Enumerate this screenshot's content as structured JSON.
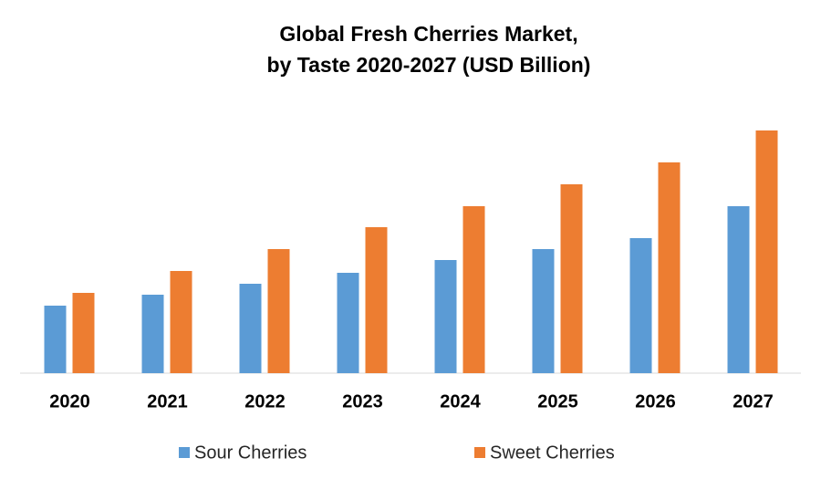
{
  "chart_data": {
    "type": "bar",
    "title": "Global Fresh Cherries Market,",
    "subtitle": "by Taste 2020-2027 (USD Billion)",
    "categories": [
      "2020",
      "2021",
      "2022",
      "2023",
      "2024",
      "2025",
      "2026",
      "2027"
    ],
    "series": [
      {
        "name": "Sour Cherries",
        "color": "#5b9bd5",
        "values": [
          0.74,
          0.86,
          0.98,
          1.1,
          1.24,
          1.36,
          1.48,
          1.83
        ]
      },
      {
        "name": "Sweet Cherries",
        "color": "#ed7d31",
        "values": [
          0.88,
          1.12,
          1.36,
          1.6,
          1.83,
          2.07,
          2.31,
          2.66
        ]
      }
    ],
    "legend": "bottom"
  }
}
